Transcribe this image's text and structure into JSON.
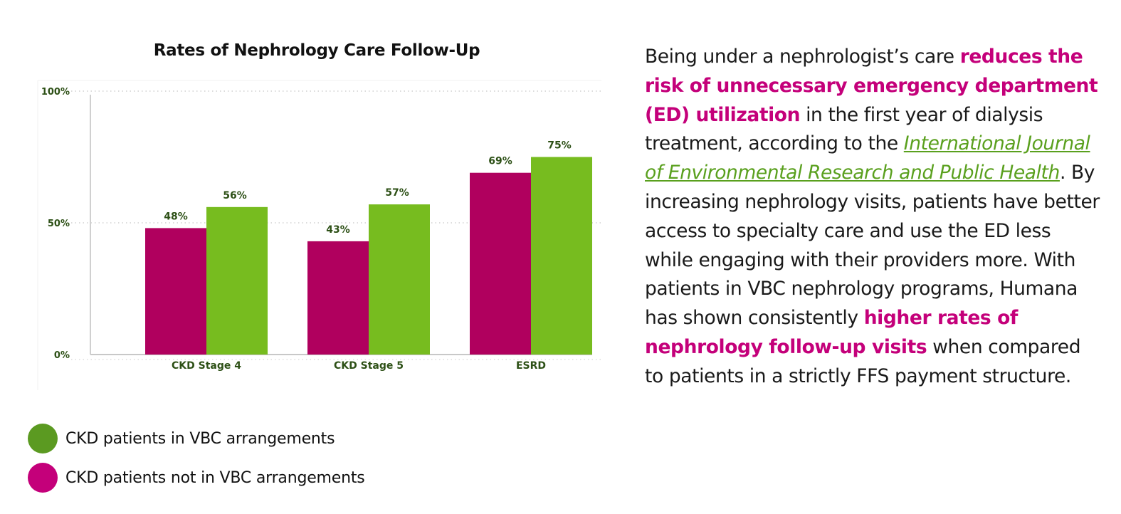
{
  "chart_data": {
    "type": "bar",
    "title": "Rates of Nephrology Care Follow-Up",
    "categories": [
      "CKD Stage 4",
      "CKD Stage 5",
      "ESRD"
    ],
    "series": [
      {
        "name": "CKD patients not in VBC arrangements",
        "values": [
          48,
          43,
          69
        ],
        "labels": [
          "48%",
          "43%",
          "69%"
        ],
        "color": "#b0005e"
      },
      {
        "name": "CKD patients in VBC arrangements",
        "values": [
          56,
          57,
          75
        ],
        "labels": [
          "56%",
          "57%",
          "75%"
        ],
        "color": "#77bc1f"
      }
    ],
    "ylim": [
      0,
      100
    ],
    "yticks": [
      0,
      50,
      100
    ],
    "ytick_labels": [
      "0%",
      "50%",
      "100%"
    ],
    "xlabel": "",
    "ylabel": "",
    "grid": true
  },
  "legend": [
    {
      "label": "CKD patients in VBC arrangements",
      "color": "#5b9a21"
    },
    {
      "label": "CKD patients not in VBC arrangements",
      "color": "#c4007a"
    }
  ],
  "body": {
    "p1": "Being under a nephrologist’s care ",
    "h1": "reduces the risk of unnecessary emergency department (ED) utilization",
    "p2": " in the first year of dialysis treatment, according to the ",
    "cite": "International Journal of Environmental Research and Public Health",
    "p3": ". By increasing nephrology visits, patients have better access to specialty care and use the ED less while engaging with their providers more. With patients in VBC nephrology programs, Humana has shown consistently ",
    "h2": "higher rates of nephrology follow-up visits",
    "p4": " when compared to patients in a strictly FFS payment structure."
  }
}
